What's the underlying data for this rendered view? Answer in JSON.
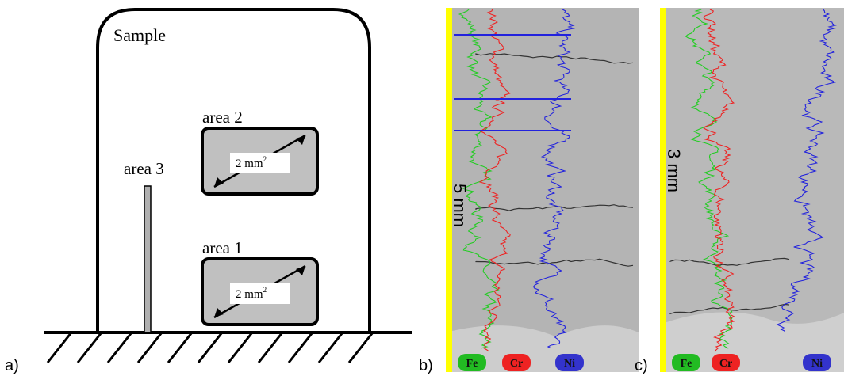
{
  "panel_a": {
    "label": "a)",
    "sample_label": "Sample",
    "areas": [
      {
        "label": "area 2",
        "size": "2 mm",
        "exponent": "2"
      },
      {
        "label": "area 1",
        "size": "2 mm",
        "exponent": "2"
      }
    ],
    "area_3": "area 3"
  },
  "panel_b": {
    "label": "b)",
    "scale": "5 mm",
    "elements": [
      "Fe",
      "Cr",
      "Ni"
    ]
  },
  "panel_c": {
    "label": "c)",
    "scale": "3 mm",
    "elements": [
      "Fe",
      "Cr",
      "Ni"
    ]
  }
}
